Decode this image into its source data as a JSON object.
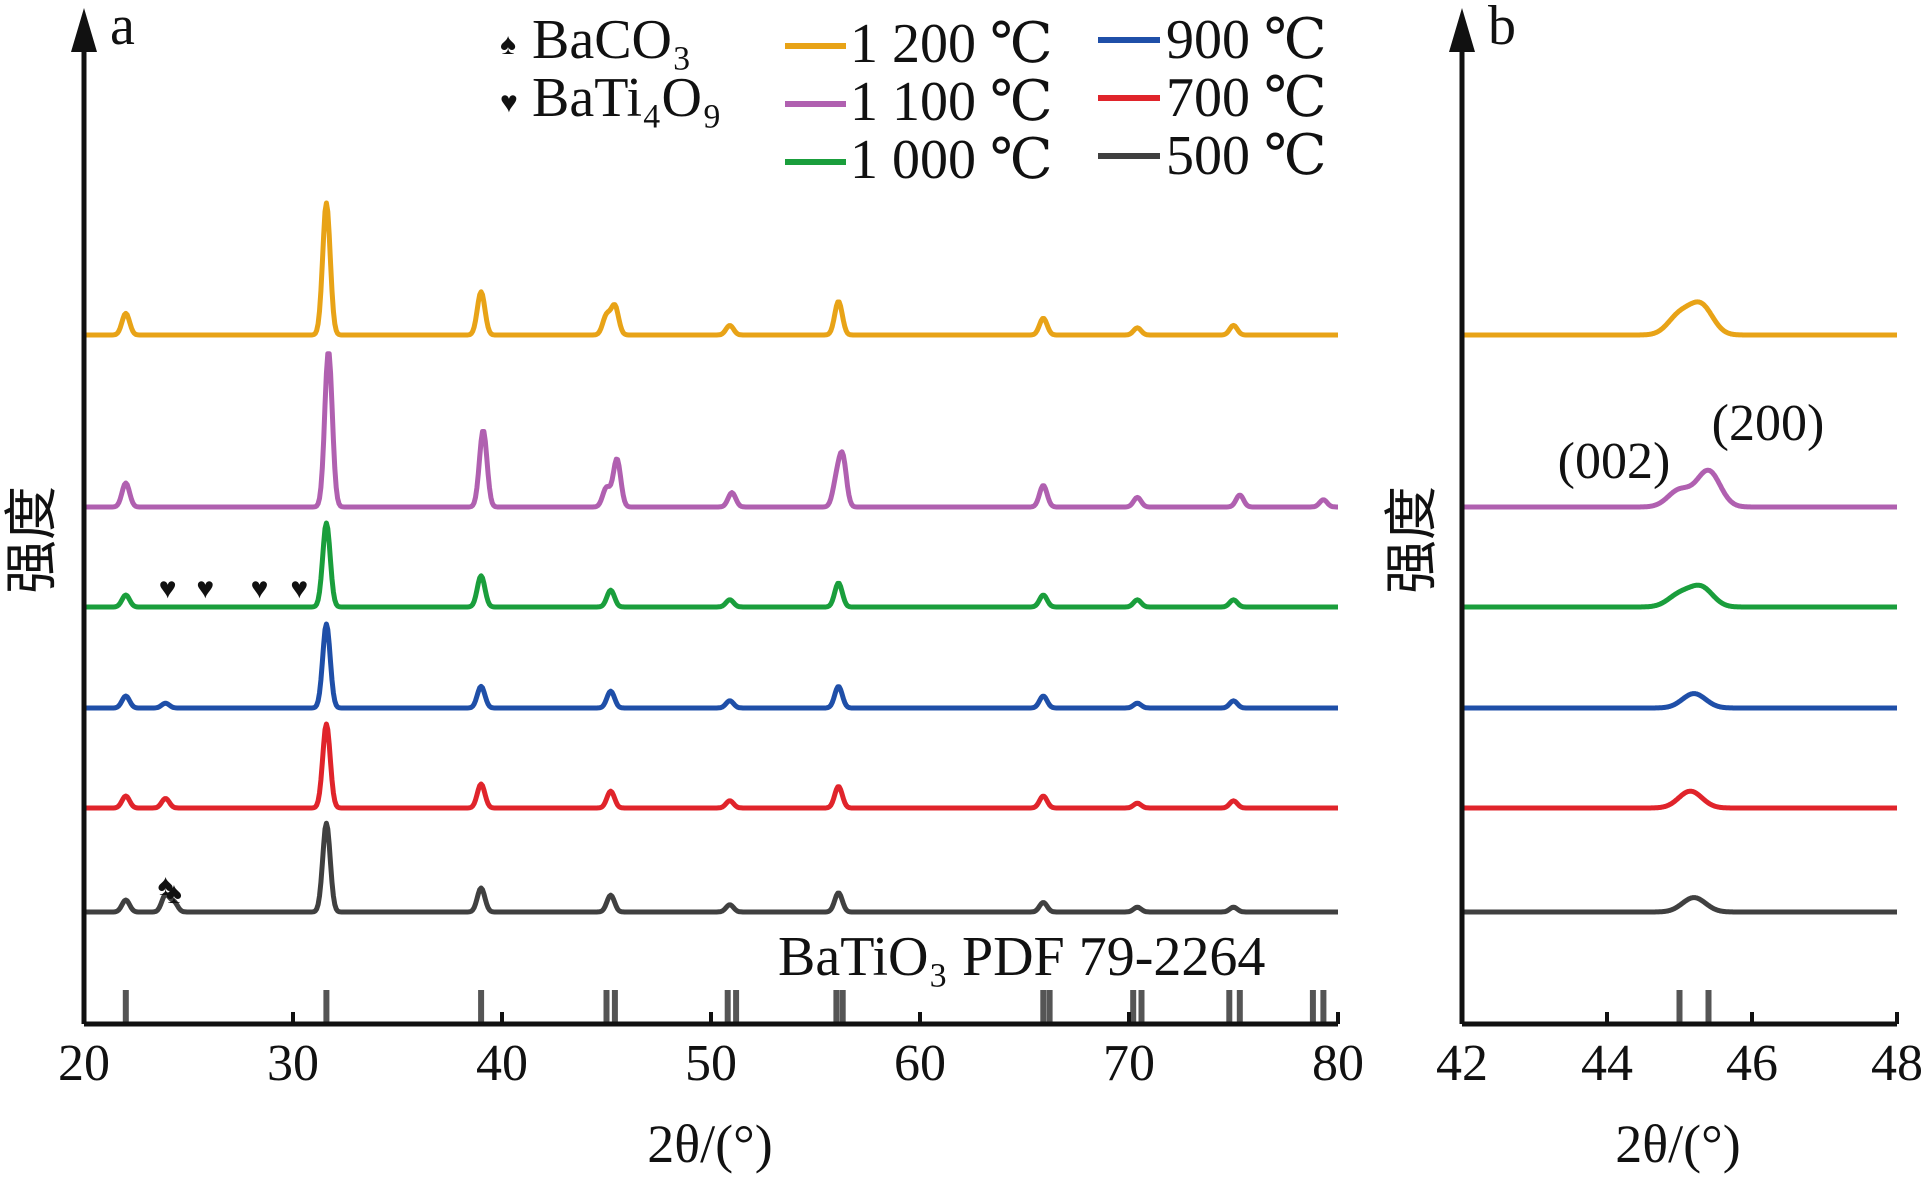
{
  "legend": {
    "markers": [
      {
        "symbol": "♠",
        "label": "BaCO₃",
        "icon": "spade-icon"
      },
      {
        "symbol": "♥",
        "label": "BaTi₄O₉",
        "icon": "heart-icon"
      }
    ],
    "col1": [
      {
        "label": "1 200 ℃",
        "color": "#E8A317"
      },
      {
        "label": "1 100 ℃",
        "color": "#B060B0"
      },
      {
        "label": "1 000 ℃",
        "color": "#1A9E3C"
      }
    ],
    "col2": [
      {
        "label": "900 ℃",
        "color": "#1F4FA8"
      },
      {
        "label": "700 ℃",
        "color": "#E0242B"
      },
      {
        "label": "500 ℃",
        "color": "#404040"
      }
    ]
  },
  "chart_data": [
    {
      "panel": "a",
      "type": "line",
      "xlabel": "2θ/(°)",
      "ylabel": "强度",
      "xlim": [
        20,
        80
      ],
      "xticks": [
        "20",
        "30",
        "40",
        "50",
        "60",
        "70",
        "80"
      ],
      "reference_label": "BaTiO₃ PDF 79-2264",
      "reference_peaks": [
        22.0,
        31.6,
        39.0,
        45.0,
        45.4,
        50.8,
        51.2,
        56.0,
        56.3,
        65.9,
        66.2,
        70.2,
        70.6,
        74.8,
        75.3,
        78.8,
        79.3
      ],
      "series": [
        {
          "name": "1 200 ℃",
          "color": "#E8A317",
          "peaks": [
            [
              22.0,
              0.09
            ],
            [
              31.6,
              0.55
            ],
            [
              39.0,
              0.18
            ],
            [
              45.0,
              0.08
            ],
            [
              45.4,
              0.12
            ],
            [
              50.9,
              0.04
            ],
            [
              56.1,
              0.14
            ],
            [
              65.9,
              0.07
            ],
            [
              70.4,
              0.03
            ],
            [
              75.0,
              0.04
            ]
          ]
        },
        {
          "name": "1 100 ℃",
          "color": "#B060B0",
          "peaks": [
            [
              22.0,
              0.1
            ],
            [
              31.7,
              0.65
            ],
            [
              39.1,
              0.32
            ],
            [
              45.0,
              0.08
            ],
            [
              45.5,
              0.2
            ],
            [
              51.0,
              0.06
            ],
            [
              56.0,
              0.1
            ],
            [
              56.3,
              0.2
            ],
            [
              65.9,
              0.09
            ],
            [
              70.4,
              0.04
            ],
            [
              75.3,
              0.05
            ],
            [
              79.3,
              0.03
            ]
          ]
        },
        {
          "name": "1 000 ℃",
          "color": "#1A9E3C",
          "peaks": [
            [
              22.0,
              0.05
            ],
            [
              31.6,
              0.35
            ],
            [
              39.0,
              0.13
            ],
            [
              45.2,
              0.07
            ],
            [
              50.9,
              0.03
            ],
            [
              56.1,
              0.1
            ],
            [
              65.9,
              0.05
            ],
            [
              70.4,
              0.03
            ],
            [
              75.0,
              0.03
            ]
          ]
        },
        {
          "name": "900 ℃",
          "color": "#1F4FA8",
          "peaks": [
            [
              22.0,
              0.05
            ],
            [
              23.9,
              0.02
            ],
            [
              31.6,
              0.35
            ],
            [
              39.0,
              0.09
            ],
            [
              45.2,
              0.07
            ],
            [
              50.9,
              0.03
            ],
            [
              56.1,
              0.09
            ],
            [
              65.9,
              0.05
            ],
            [
              70.4,
              0.02
            ],
            [
              75.0,
              0.03
            ]
          ]
        },
        {
          "name": "700 ℃",
          "color": "#E0242B",
          "peaks": [
            [
              22.0,
              0.05
            ],
            [
              23.9,
              0.04
            ],
            [
              31.6,
              0.35
            ],
            [
              39.0,
              0.1
            ],
            [
              45.2,
              0.07
            ],
            [
              50.9,
              0.03
            ],
            [
              56.1,
              0.09
            ],
            [
              65.9,
              0.05
            ],
            [
              70.4,
              0.02
            ],
            [
              75.0,
              0.03
            ]
          ]
        },
        {
          "name": "500 ℃",
          "color": "#404040",
          "peaks": [
            [
              22.0,
              0.05
            ],
            [
              23.9,
              0.07
            ],
            [
              24.3,
              0.04
            ],
            [
              31.6,
              0.37
            ],
            [
              39.0,
              0.1
            ],
            [
              45.2,
              0.07
            ],
            [
              50.9,
              0.03
            ],
            [
              56.1,
              0.08
            ],
            [
              65.9,
              0.04
            ],
            [
              70.4,
              0.02
            ],
            [
              75.0,
              0.02
            ]
          ]
        }
      ],
      "annotations": [
        {
          "symbol": "♥",
          "x": [
            24.0,
            25.8,
            28.4,
            30.3
          ],
          "series": "1 000 ℃"
        },
        {
          "symbol": "♠",
          "x": [
            23.9,
            24.3
          ],
          "series": "500 ℃"
        }
      ]
    },
    {
      "panel": "b",
      "type": "line",
      "xlabel": "2θ/(°)",
      "ylabel": "强度",
      "xlim": [
        42,
        48
      ],
      "xticks": [
        "42",
        "44",
        "46",
        "48"
      ],
      "reference_peaks": [
        45.0,
        45.4
      ],
      "peak_labels": [
        {
          "text": "(002)",
          "x": 45.0
        },
        {
          "text": "(200)",
          "x": 45.4
        }
      ],
      "series": [
        {
          "name": "1 200 ℃",
          "color": "#E8A317",
          "peaks": [
            [
              45.0,
              0.08
            ],
            [
              45.3,
              0.12
            ]
          ]
        },
        {
          "name": "1 100 ℃",
          "color": "#B060B0",
          "peaks": [
            [
              45.0,
              0.07
            ],
            [
              45.4,
              0.15
            ]
          ]
        },
        {
          "name": "1 000 ℃",
          "color": "#1A9E3C",
          "peaks": [
            [
              45.0,
              0.05
            ],
            [
              45.3,
              0.08
            ]
          ]
        },
        {
          "name": "900 ℃",
          "color": "#1F4FA8",
          "peaks": [
            [
              45.2,
              0.06
            ]
          ]
        },
        {
          "name": "700 ℃",
          "color": "#E0242B",
          "peaks": [
            [
              45.15,
              0.07
            ]
          ]
        },
        {
          "name": "500 ℃",
          "color": "#404040",
          "peaks": [
            [
              45.2,
              0.06
            ]
          ]
        }
      ]
    }
  ]
}
